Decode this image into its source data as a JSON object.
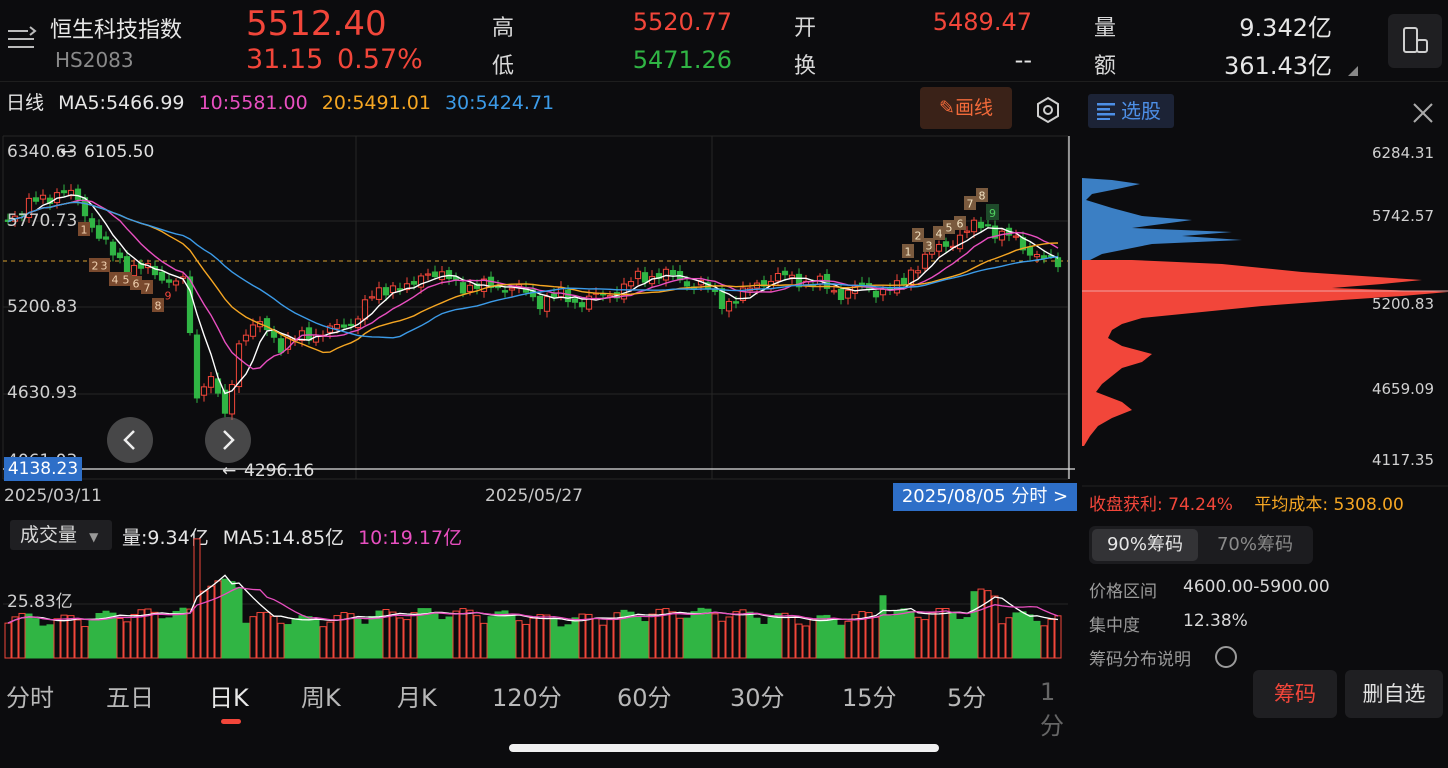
{
  "header": {
    "stock_name": "恒生科技指数",
    "stock_code": "HS2083",
    "last_price": "5512.40",
    "change": "31.15",
    "change_pct": "0.57%",
    "high_label": "高",
    "high_value": "5520.77",
    "low_label": "低",
    "low_value": "5471.26",
    "open_label": "开",
    "open_value": "5489.47",
    "turnover_label": "换",
    "turnover_value": "--",
    "volume_label": "量",
    "volume_value": "9.342亿",
    "amount_label": "额",
    "amount_value": "361.43亿"
  },
  "ma_row": {
    "period": "日线",
    "ma5": "MA5:5466.99",
    "ma10": "10:5581.00",
    "ma20": "20:5491.01",
    "ma30": "30:5424.71"
  },
  "toolbar": {
    "draw_label": "画线"
  },
  "chip_panel": {
    "tab_label": "选股",
    "price_ticks": [
      "6284.31",
      "5742.57",
      "5200.83",
      "4659.09",
      "4117.35"
    ],
    "profit_label": "收盘获利:",
    "profit_value": "74.24%",
    "avg_cost_label": "平均成本:",
    "avg_cost_value": "5308.00",
    "chip_90_label": "90%筹码",
    "chip_70_label": "70%筹码",
    "price_range_label": "价格区间",
    "price_range_value": "4600.00-5900.00",
    "concentration_label": "集中度",
    "concentration_value": "12.38%",
    "explain_label": "筹码分布说明"
  },
  "chart": {
    "y_ticks": [
      "6340.63",
      "5770.73",
      "5200.83",
      "4630.93",
      "4061.03"
    ],
    "max_label": "6105.50",
    "min_label": "4296.16",
    "current_low_tag": "4138.23",
    "x_dates": [
      "2025/03/11",
      "2025/05/27"
    ],
    "date_tag": "2025/08/05 分时 >",
    "colors": {
      "up": "#f2463a",
      "down": "#30b544",
      "ma5": "#ffffff",
      "ma10": "#e84fc0",
      "ma20": "#f5a623",
      "ma30": "#3c9be8"
    }
  },
  "volume": {
    "selector_label": "成交量",
    "vol": "量:9.34亿",
    "ma5": "MA5:14.85亿",
    "ma10": "10:19.17亿",
    "y_tick": "25.83亿"
  },
  "tabs": [
    "分时",
    "五日",
    "日K",
    "周K",
    "月K",
    "120分",
    "60分",
    "30分",
    "15分",
    "5分",
    "1分"
  ],
  "actions": {
    "chips": "筹码",
    "remove_watch": "删自选"
  }
}
